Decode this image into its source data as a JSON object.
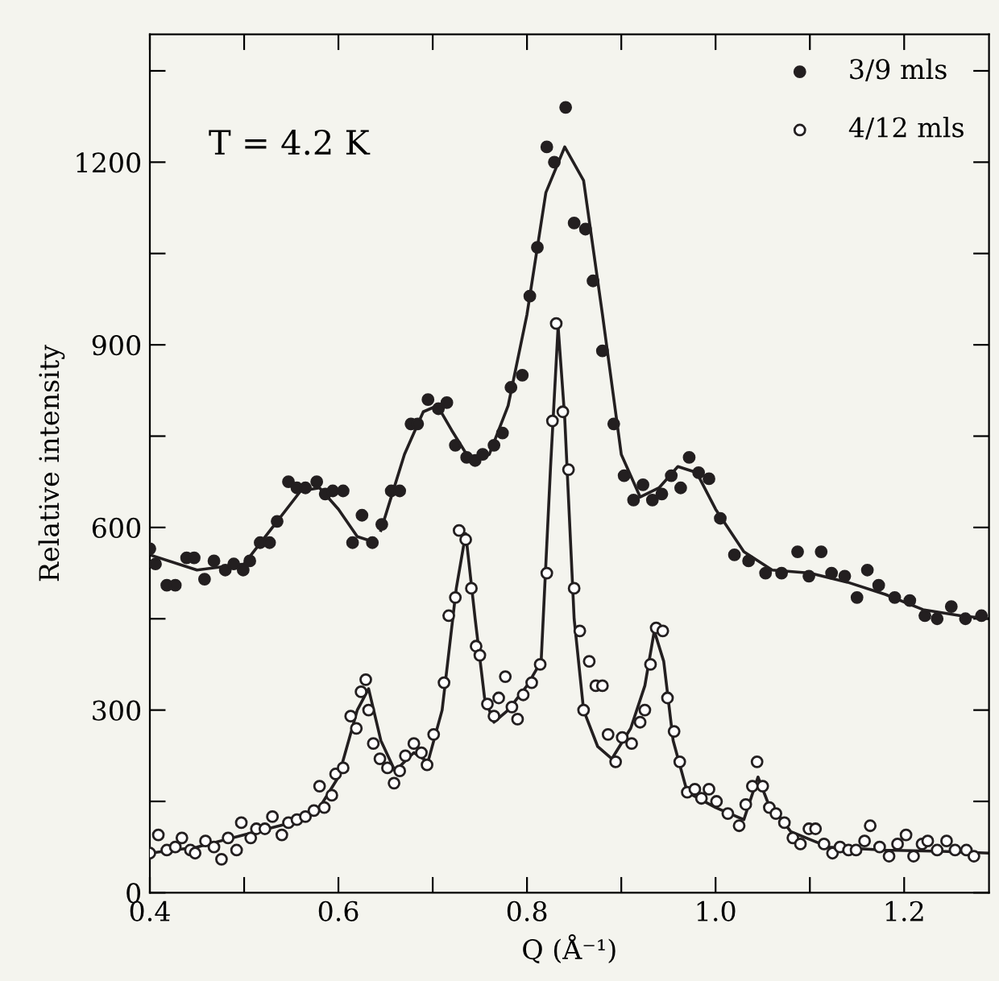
{
  "chart_data": {
    "type": "scatter",
    "xlabel": "Q (Å⁻¹)",
    "ylabel": "Relative intensity",
    "annotations": [
      "T = 4.2 K"
    ],
    "xlim": [
      0.4,
      1.29
    ],
    "ylim": [
      0,
      1410
    ],
    "xticks": [
      0.4,
      {
        "value": 0.5,
        "label": null
      },
      0.6,
      {
        "value": 0.7,
        "label": null
      },
      0.8,
      {
        "value": 0.9,
        "label": null
      },
      {
        "value": 1.0,
        "label": "1.0"
      },
      {
        "value": 1.1,
        "label": null
      },
      1.2
    ],
    "yticks": [
      0,
      {
        "value": 150,
        "label": null
      },
      300,
      {
        "value": 450,
        "label": null
      },
      600,
      {
        "value": 750,
        "label": null
      },
      900,
      {
        "value": 1050,
        "label": null
      },
      1200,
      {
        "value": 1350,
        "label": null
      }
    ],
    "grid": false,
    "legend": "top right",
    "series": [
      {
        "name": "3/9 mls",
        "marker": "circle",
        "color": "#231f20",
        "x": [
          0.4,
          0.406,
          0.418,
          0.427,
          0.439,
          0.447,
          0.458,
          0.468,
          0.48,
          0.489,
          0.499,
          0.506,
          0.517,
          0.527,
          0.535,
          0.547,
          0.556,
          0.565,
          0.577,
          0.586,
          0.594,
          0.605,
          0.615,
          0.625,
          0.636,
          0.646,
          0.656,
          0.665,
          0.677,
          0.684,
          0.695,
          0.706,
          0.715,
          0.724,
          0.736,
          0.745,
          0.753,
          0.765,
          0.774,
          0.783,
          0.795,
          0.803,
          0.811,
          0.821,
          0.829,
          0.841,
          0.85,
          0.862,
          0.87,
          0.88,
          0.892,
          0.903,
          0.913,
          0.923,
          0.933,
          0.943,
          0.953,
          0.963,
          0.972,
          0.982,
          0.993,
          1.005,
          1.02,
          1.035,
          1.053,
          1.07,
          1.087,
          1.099,
          1.112,
          1.123,
          1.137,
          1.15,
          1.161,
          1.173,
          1.19,
          1.206,
          1.222,
          1.235,
          1.25,
          1.265,
          1.282
        ],
        "values": [
          565,
          540,
          505,
          505,
          550,
          550,
          515,
          545,
          530,
          540,
          530,
          545,
          575,
          575,
          610,
          675,
          665,
          665,
          675,
          655,
          660,
          660,
          575,
          620,
          575,
          605,
          660,
          660,
          770,
          770,
          810,
          795,
          805,
          735,
          715,
          710,
          720,
          735,
          755,
          830,
          850,
          980,
          1060,
          1225,
          1200,
          1290,
          1100,
          1090,
          1005,
          890,
          770,
          685,
          645,
          670,
          645,
          655,
          685,
          665,
          715,
          690,
          680,
          615,
          555,
          545,
          525,
          525,
          560,
          520,
          560,
          525,
          520,
          485,
          530,
          505,
          485,
          480,
          455,
          450,
          470,
          450,
          455
        ]
      },
      {
        "name": "4/12 mls",
        "marker": "circle",
        "color": "#231f20",
        "x": [
          0.4,
          0.409,
          0.418,
          0.427,
          0.434,
          0.443,
          0.448,
          0.459,
          0.468,
          0.476,
          0.483,
          0.492,
          0.497,
          0.507,
          0.513,
          0.522,
          0.53,
          0.54,
          0.547,
          0.556,
          0.565,
          0.574,
          0.58,
          0.585,
          0.593,
          0.597,
          0.605,
          0.613,
          0.619,
          0.624,
          0.629,
          0.632,
          0.637,
          0.644,
          0.652,
          0.659,
          0.665,
          0.671,
          0.68,
          0.688,
          0.694,
          0.701,
          0.712,
          0.717,
          0.724,
          0.728,
          0.735,
          0.741,
          0.746,
          0.75,
          0.758,
          0.765,
          0.77,
          0.777,
          0.784,
          0.79,
          0.796,
          0.805,
          0.814,
          0.821,
          0.827,
          0.831,
          0.838,
          0.844,
          0.85,
          0.856,
          0.86,
          0.866,
          0.873,
          0.88,
          0.886,
          0.894,
          0.901,
          0.911,
          0.92,
          0.925,
          0.931,
          0.937,
          0.944,
          0.949,
          0.956,
          0.962,
          0.97,
          0.978,
          0.985,
          0.993,
          1.001,
          1.013,
          1.025,
          1.032,
          1.039,
          1.044,
          1.05,
          1.057,
          1.064,
          1.073,
          1.082,
          1.09,
          1.099,
          1.106,
          1.115,
          1.124,
          1.132,
          1.141,
          1.149,
          1.158,
          1.164,
          1.174,
          1.184,
          1.193,
          1.202,
          1.21,
          1.219,
          1.225,
          1.235,
          1.245,
          1.254,
          1.266,
          1.274
        ],
        "values": [
          65,
          95,
          70,
          75,
          90,
          70,
          65,
          85,
          75,
          55,
          90,
          70,
          115,
          90,
          105,
          105,
          125,
          95,
          115,
          120,
          125,
          135,
          175,
          140,
          160,
          195,
          205,
          290,
          270,
          330,
          350,
          300,
          245,
          220,
          205,
          180,
          200,
          225,
          245,
          230,
          210,
          260,
          345,
          455,
          485,
          595,
          580,
          500,
          405,
          390,
          310,
          290,
          320,
          355,
          305,
          285,
          325,
          345,
          375,
          525,
          775,
          935,
          790,
          695,
          500,
          430,
          300,
          380,
          340,
          340,
          260,
          215,
          255,
          245,
          280,
          300,
          375,
          435,
          430,
          320,
          265,
          215,
          165,
          170,
          155,
          170,
          150,
          130,
          110,
          145,
          175,
          215,
          175,
          140,
          130,
          115,
          90,
          80,
          105,
          105,
          80,
          65,
          75,
          70,
          70,
          85,
          110,
          75,
          60,
          80,
          95,
          60,
          80,
          85,
          70,
          85,
          70,
          70,
          60
        ]
      },
      {
        "type": "line",
        "color": "#231f20",
        "x": [
          0.4,
          0.45,
          0.5,
          0.53,
          0.56,
          0.58,
          0.6,
          0.62,
          0.64,
          0.642,
          0.645,
          0.67,
          0.69,
          0.705,
          0.72,
          0.74,
          0.76,
          0.78,
          0.8,
          0.82,
          0.84,
          0.86,
          0.88,
          0.9,
          0.92,
          0.94,
          0.96,
          0.98,
          1.0,
          1.03,
          1.06,
          1.1,
          1.14,
          1.18,
          1.22,
          1.26,
          1.29
        ],
        "values": [
          555,
          530,
          540,
          600,
          660,
          665,
          630,
          585,
          575,
          null,
          595,
          720,
          790,
          800,
          760,
          710,
          720,
          800,
          950,
          1150,
          1225,
          1170,
          950,
          720,
          650,
          665,
          700,
          690,
          630,
          560,
          530,
          525,
          510,
          490,
          465,
          455,
          450
        ]
      },
      {
        "type": "line",
        "color": "#231f20",
        "x": [
          0.4,
          0.45,
          0.5,
          0.55,
          0.58,
          0.6,
          0.62,
          0.632,
          0.645,
          0.66,
          0.68,
          0.695,
          0.71,
          0.725,
          0.735,
          0.745,
          0.755,
          0.765,
          0.78,
          0.8,
          0.815,
          0.825,
          0.833,
          0.84,
          0.85,
          0.86,
          0.875,
          0.89,
          0.91,
          0.925,
          0.935,
          0.945,
          0.955,
          0.97,
          1.0,
          1.03,
          1.045,
          1.055,
          1.08,
          1.12,
          1.18,
          1.24,
          1.29
        ],
        "values": [
          65,
          75,
          95,
          115,
          140,
          190,
          300,
          335,
          250,
          200,
          230,
          215,
          300,
          500,
          590,
          450,
          320,
          280,
          300,
          340,
          380,
          700,
          930,
          780,
          450,
          300,
          240,
          220,
          270,
          340,
          430,
          380,
          250,
          165,
          140,
          120,
          190,
          150,
          100,
          75,
          70,
          68,
          65
        ]
      }
    ]
  }
}
